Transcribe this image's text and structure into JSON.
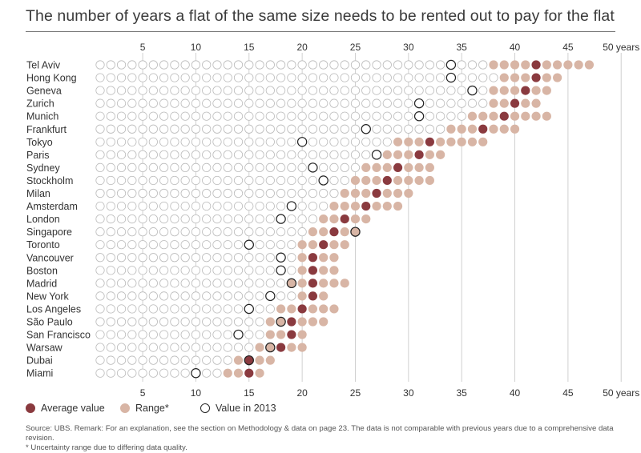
{
  "title": "The number of years a flat of the same size needs to be rented out to pay for the flat",
  "legend": {
    "average": "Average value",
    "range": "Range*",
    "y2013": "Value in 2013"
  },
  "footer": {
    "source": "Source: UBS. Remark: For an explanation, see the section on Methodology & data on page 23. The data is not comparable with previous years due to a comprehensive data revision.",
    "note": "* Uncertainty range due to differing data quality."
  },
  "colors": {
    "average": "#8a3a3f",
    "range": "#d8b5a5",
    "empty": "#bbbbbb",
    "grid": "#d0d0d0",
    "text": "#333333"
  },
  "chart_data": {
    "type": "dot-range",
    "title": "The number of years a flat of the same size needs to be rented out to pay for the flat",
    "xlabel": "years",
    "x_ticks": [
      "5",
      "10",
      "15",
      "20",
      "25",
      "30",
      "35",
      "40",
      "45",
      "50 years"
    ],
    "x_tick_values": [
      5,
      10,
      15,
      20,
      25,
      30,
      35,
      40,
      45,
      50
    ],
    "x_range": [
      1,
      47
    ],
    "cities": [
      {
        "name": "Tel Aviv",
        "range": [
          38,
          47
        ],
        "average": 42,
        "value_2013": 34
      },
      {
        "name": "Hong Kong",
        "range": [
          39,
          44
        ],
        "average": 42,
        "value_2013": 34
      },
      {
        "name": "Geneva",
        "range": [
          38,
          43
        ],
        "average": 41,
        "value_2013": 36
      },
      {
        "name": "Zurich",
        "range": [
          38,
          42
        ],
        "average": 40,
        "value_2013": 31
      },
      {
        "name": "Munich",
        "range": [
          36,
          43
        ],
        "average": 39,
        "value_2013": 31
      },
      {
        "name": "Frankfurt",
        "range": [
          34,
          40
        ],
        "average": 37,
        "value_2013": 26
      },
      {
        "name": "Tokyo",
        "range": [
          29,
          37
        ],
        "average": 32,
        "value_2013": 20
      },
      {
        "name": "Paris",
        "range": [
          28,
          33
        ],
        "average": 31,
        "value_2013": 27
      },
      {
        "name": "Sydney",
        "range": [
          26,
          32
        ],
        "average": 29,
        "value_2013": 21
      },
      {
        "name": "Stockholm",
        "range": [
          25,
          32
        ],
        "average": 28,
        "value_2013": 22
      },
      {
        "name": "Milan",
        "range": [
          24,
          30
        ],
        "average": 27,
        "value_2013": null
      },
      {
        "name": "Amsterdam",
        "range": [
          23,
          29
        ],
        "average": 26,
        "value_2013": 19
      },
      {
        "name": "London",
        "range": [
          22,
          26
        ],
        "average": 24,
        "value_2013": 18
      },
      {
        "name": "Singapore",
        "range": [
          21,
          25
        ],
        "average": 23,
        "value_2013": 25
      },
      {
        "name": "Toronto",
        "range": [
          20,
          24
        ],
        "average": 22,
        "value_2013": 15
      },
      {
        "name": "Vancouver",
        "range": [
          20,
          23
        ],
        "average": 21,
        "value_2013": 18
      },
      {
        "name": "Boston",
        "range": [
          20,
          23
        ],
        "average": 21,
        "value_2013": 18
      },
      {
        "name": "Madrid",
        "range": [
          19,
          24
        ],
        "average": 21,
        "value_2013": 19
      },
      {
        "name": "New York",
        "range": [
          20,
          22
        ],
        "average": 21,
        "value_2013": 17
      },
      {
        "name": "Los Angeles",
        "range": [
          18,
          23
        ],
        "average": 20,
        "value_2013": 15
      },
      {
        "name": "São Paulo",
        "range": [
          17,
          22
        ],
        "average": 19,
        "value_2013": 18
      },
      {
        "name": "San Francisco",
        "range": [
          17,
          20
        ],
        "average": 19,
        "value_2013": 14
      },
      {
        "name": "Warsaw",
        "range": [
          16,
          20
        ],
        "average": 18,
        "value_2013": 17
      },
      {
        "name": "Dubai",
        "range": [
          14,
          17
        ],
        "average": 15,
        "value_2013": 15
      },
      {
        "name": "Miami",
        "range": [
          13,
          16
        ],
        "average": 15,
        "value_2013": 10
      }
    ]
  }
}
